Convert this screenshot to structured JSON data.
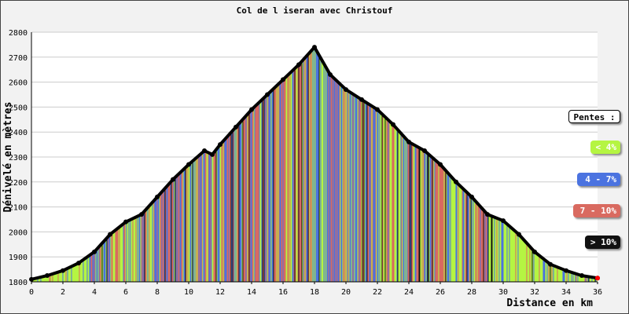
{
  "chart_data": {
    "type": "area",
    "title": "Col de l iseran avec Christouf",
    "xlabel": "Distance en km",
    "ylabel": "Dénivelé en mètres",
    "xlim": [
      0,
      36
    ],
    "ylim": [
      1800,
      2800
    ],
    "x_ticks": [
      0,
      2,
      4,
      6,
      8,
      10,
      12,
      14,
      16,
      18,
      20,
      22,
      24,
      26,
      28,
      30,
      32,
      34,
      36
    ],
    "y_ticks": [
      1800,
      1900,
      2000,
      2100,
      2200,
      2300,
      2400,
      2500,
      2600,
      2700,
      2800
    ],
    "grid": true,
    "legend_placement": "right",
    "profile": {
      "x": [
        0,
        1,
        2,
        3,
        4,
        5,
        6,
        7,
        8,
        9,
        10,
        11,
        11.5,
        12,
        13,
        14,
        15,
        16,
        17,
        18,
        19,
        20,
        21,
        22,
        23,
        24,
        25,
        26,
        27,
        28,
        29,
        30,
        31,
        32,
        33,
        34,
        35,
        36
      ],
      "y": [
        1810,
        1825,
        1845,
        1875,
        1920,
        1990,
        2040,
        2070,
        2140,
        2210,
        2270,
        2325,
        2310,
        2350,
        2420,
        2490,
        2550,
        2610,
        2670,
        2740,
        2630,
        2570,
        2530,
        2490,
        2430,
        2360,
        2325,
        2270,
        2200,
        2140,
        2070,
        2045,
        1990,
        1920,
        1870,
        1845,
        1825,
        1815
      ]
    },
    "legend": {
      "title": "Pentes :",
      "entries": [
        {
          "label": "< 4%",
          "color": "#b5f542"
        },
        {
          "label": "4 - 7%",
          "color": "#4b73e0"
        },
        {
          "label": "7 - 10%",
          "color": "#d96a60"
        },
        {
          "label": "> 10%",
          "color": "#111111"
        }
      ]
    }
  }
}
